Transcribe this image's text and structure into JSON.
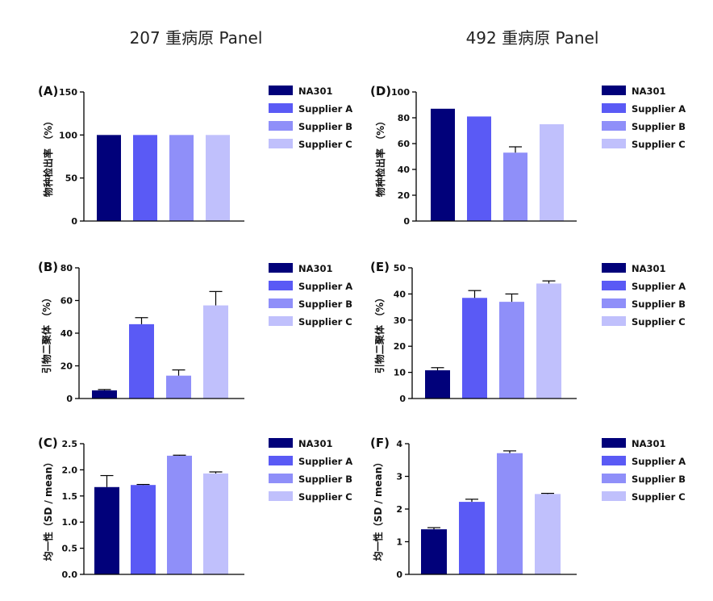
{
  "titles": {
    "left": "207 重病原 Panel",
    "right": "492 重病原 Panel"
  },
  "colors": {
    "NA301": "#01017a",
    "Supplier A": "#5a5af5",
    "Supplier B": "#8f8ff9",
    "Supplier C": "#c0c0fc"
  },
  "chart_data": [
    {
      "id": "A",
      "letter": "(A)",
      "type": "bar",
      "ylabel": "物种检出率 （%）",
      "ylim": [
        0,
        150
      ],
      "yticks": [
        "0",
        "50",
        "100",
        "150"
      ],
      "ytick_values": [
        0,
        50,
        100,
        150
      ],
      "legend": [
        "NA301",
        "Supplier A",
        "Supplier B",
        "Supplier C"
      ],
      "series": [
        {
          "name": "NA301",
          "value": 100,
          "error": 0
        },
        {
          "name": "Supplier A",
          "value": 100,
          "error": 0
        },
        {
          "name": "Supplier B",
          "value": 100,
          "error": 0
        },
        {
          "name": "Supplier C",
          "value": 100,
          "error": 0
        }
      ]
    },
    {
      "id": "D",
      "letter": "(D)",
      "type": "bar",
      "ylabel": "物种检出率 （%）",
      "ylim": [
        0,
        100
      ],
      "yticks": [
        "0",
        "20",
        "40",
        "60",
        "80",
        "100"
      ],
      "ytick_values": [
        0,
        20,
        40,
        60,
        80,
        100
      ],
      "legend": [
        "NA301",
        "Supplier A",
        "Supplier B",
        "Supplier C"
      ],
      "series": [
        {
          "name": "NA301",
          "value": 87,
          "error": 0
        },
        {
          "name": "Supplier A",
          "value": 81,
          "error": 0
        },
        {
          "name": "Supplier B",
          "value": 53,
          "error": 4.5
        },
        {
          "name": "Supplier C",
          "value": 75,
          "error": 0
        }
      ]
    },
    {
      "id": "B",
      "letter": "(B)",
      "type": "bar",
      "ylabel": "引物二聚体 （%）",
      "ylim": [
        0,
        80
      ],
      "yticks": [
        "0",
        "20",
        "40",
        "60",
        "80"
      ],
      "ytick_values": [
        0,
        20,
        40,
        60,
        80
      ],
      "legend": [
        "NA301",
        "Supplier A",
        "Supplier B",
        "Supplier C"
      ],
      "series": [
        {
          "name": "NA301",
          "value": 5,
          "error": 0.5
        },
        {
          "name": "Supplier A",
          "value": 45.5,
          "error": 4
        },
        {
          "name": "Supplier B",
          "value": 14,
          "error": 3.5
        },
        {
          "name": "Supplier C",
          "value": 57,
          "error": 8.5
        }
      ]
    },
    {
      "id": "E",
      "letter": "(E)",
      "type": "bar",
      "ylabel": "引物二聚体 （%）",
      "ylim": [
        0,
        50
      ],
      "yticks": [
        "0",
        "10",
        "20",
        "30",
        "40",
        "50"
      ],
      "ytick_values": [
        0,
        10,
        20,
        30,
        40,
        50
      ],
      "legend": [
        "NA301",
        "Supplier A",
        "Supplier B",
        "Supplier C"
      ],
      "series": [
        {
          "name": "NA301",
          "value": 10.8,
          "error": 1
        },
        {
          "name": "Supplier A",
          "value": 38.5,
          "error": 2.8
        },
        {
          "name": "Supplier B",
          "value": 37,
          "error": 3
        },
        {
          "name": "Supplier C",
          "value": 44,
          "error": 1
        }
      ]
    },
    {
      "id": "C",
      "letter": "(C)",
      "type": "bar",
      "ylabel": "均一性（SD / mean）",
      "ylim": [
        0,
        2.5
      ],
      "yticks": [
        "0.0",
        "0.5",
        "1.0",
        "1.5",
        "2.0",
        "2.5"
      ],
      "ytick_values": [
        0,
        0.5,
        1,
        1.5,
        2,
        2.5
      ],
      "legend": [
        "NA301",
        "Supplier A",
        "Supplier B",
        "Supplier C"
      ],
      "series": [
        {
          "name": "NA301",
          "value": 1.67,
          "error": 0.22
        },
        {
          "name": "Supplier A",
          "value": 1.71,
          "error": 0.01
        },
        {
          "name": "Supplier B",
          "value": 2.27,
          "error": 0.01
        },
        {
          "name": "Supplier C",
          "value": 1.93,
          "error": 0.03
        }
      ]
    },
    {
      "id": "F",
      "letter": "(F)",
      "type": "bar",
      "ylabel": "均一性（SD / mean）",
      "ylim": [
        0,
        4
      ],
      "yticks": [
        "0",
        "1",
        "2",
        "3",
        "4"
      ],
      "ytick_values": [
        0,
        1,
        2,
        3,
        4
      ],
      "legend": [
        "NA301",
        "Supplier A",
        "Supplier B",
        "Supplier C"
      ],
      "series": [
        {
          "name": "NA301",
          "value": 1.38,
          "error": 0.05
        },
        {
          "name": "Supplier A",
          "value": 2.22,
          "error": 0.08
        },
        {
          "name": "Supplier B",
          "value": 3.71,
          "error": 0.07
        },
        {
          "name": "Supplier C",
          "value": 2.46,
          "error": 0.02
        }
      ]
    }
  ]
}
